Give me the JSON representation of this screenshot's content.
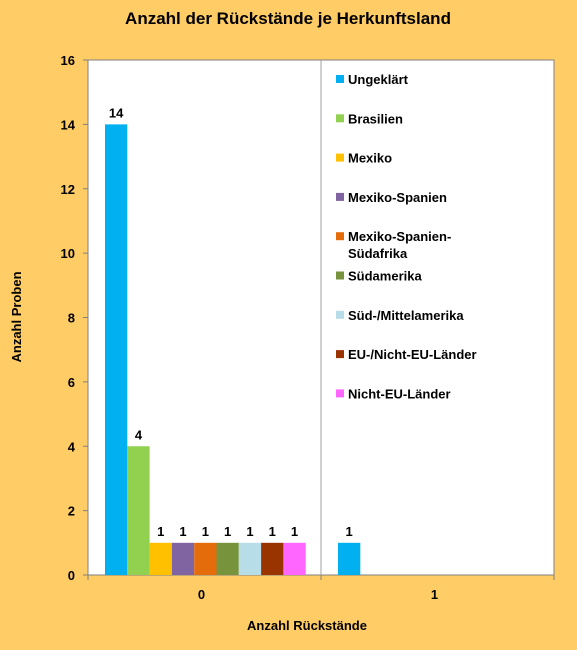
{
  "chart_data": {
    "type": "bar",
    "title": "Anzahl der Rückstände je Herkunftsland",
    "xlabel": "Anzahl Rückstände",
    "ylabel": "Anzahl Proben",
    "categories": [
      "0",
      "1"
    ],
    "ylim": [
      0,
      16
    ],
    "yticks": [
      "0",
      "2",
      "4",
      "6",
      "8",
      "10",
      "12",
      "14",
      "16"
    ],
    "legend_position": "right",
    "series": [
      {
        "name": "Ungeklärt",
        "color": "#00B0F0",
        "values": [
          14,
          1
        ]
      },
      {
        "name": "Brasilien",
        "color": "#92D050",
        "values": [
          4,
          null
        ]
      },
      {
        "name": "Mexiko",
        "color": "#FFC000",
        "values": [
          1,
          null
        ]
      },
      {
        "name": "Mexiko-Spanien",
        "color": "#8064A2",
        "values": [
          1,
          null
        ]
      },
      {
        "name": "Mexiko-Spanien-Südafrika",
        "color": "#E46C0A",
        "values": [
          1,
          null
        ],
        "legend_lines": [
          "Mexiko-Spanien-",
          "Südafrika"
        ]
      },
      {
        "name": "Südamerika",
        "color": "#77933C",
        "values": [
          1,
          null
        ]
      },
      {
        "name": "Süd-/Mittelamerika",
        "color": "#B7DEE8",
        "values": [
          1,
          null
        ]
      },
      {
        "name": "EU-/Nicht-EU-Länder",
        "color": "#993300",
        "values": [
          1,
          null
        ]
      },
      {
        "name": "Nicht-EU-Länder",
        "color": "#FF66FF",
        "values": [
          1,
          null
        ]
      }
    ]
  }
}
